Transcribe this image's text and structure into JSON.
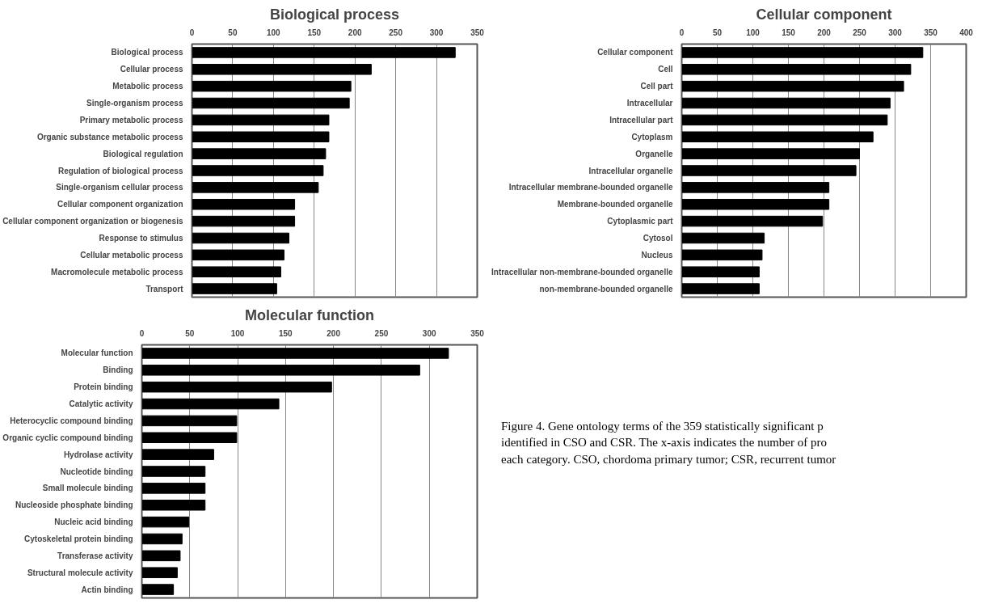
{
  "chart_data": [
    {
      "type": "bar",
      "orientation": "horizontal",
      "title": "Biological process",
      "grid": "x",
      "categories": [
        "Biological process",
        "Cellular process",
        "Metabolic process",
        "Single-organism process",
        "Primary metabolic process",
        "Organic substance metabolic process",
        "Biological regulation",
        "Regulation of biological process",
        "Single-organism cellular process",
        "Cellular component organization",
        "Cellular component organization or biogenesis",
        "Response to stimulus",
        "Cellular metabolic process",
        "Macromolecule metabolic process",
        "Transport"
      ],
      "series": [
        {
          "color": "#000000",
          "values": [
            323,
            220,
            195,
            193,
            168,
            168,
            164,
            161,
            155,
            126,
            126,
            119,
            113,
            109,
            104
          ]
        }
      ],
      "xlim": [
        0,
        350
      ],
      "xticks": [
        0,
        50,
        100,
        150,
        200,
        250,
        300,
        350
      ]
    },
    {
      "type": "bar",
      "orientation": "horizontal",
      "title": "Cellular component",
      "grid": "x",
      "categories": [
        "Cellular component",
        "Cell",
        "Cell part",
        "Intracellular",
        "Intracellular part",
        "Cytoplasm",
        "Organelle",
        "Intracellular organelle",
        "Intracellular membrane-bounded organelle",
        "Membrane-bounded organelle",
        "Cytoplasmic part",
        "Cytosol",
        "Nucleus",
        "Intracellular non-membrane-bounded organelle",
        "non-membrane-bounded organelle"
      ],
      "series": [
        {
          "color": "#000000",
          "values": [
            339,
            322,
            312,
            293,
            289,
            269,
            250,
            245,
            207,
            207,
            198,
            116,
            113,
            109,
            109
          ]
        }
      ],
      "xlim": [
        0,
        400
      ],
      "xticks": [
        0,
        50,
        100,
        150,
        200,
        250,
        300,
        350,
        400
      ]
    },
    {
      "type": "bar",
      "orientation": "horizontal",
      "title": "Molecular function",
      "grid": "x",
      "categories": [
        "Molecular function",
        "Binding",
        "Protein binding",
        "Catalytic activity",
        "Heterocyclic compound binding",
        "Organic cyclic compound binding",
        "Hydrolase activity",
        "Nucleotide binding",
        "Small molecule binding",
        "Nucleoside phosphate binding",
        "Nucleic acid binding",
        "Cytoskeletal protein binding",
        "Transferase activity",
        "Structural molecule activity",
        "Actin binding"
      ],
      "series": [
        {
          "color": "#000000",
          "values": [
            320,
            290,
            198,
            143,
            99,
            99,
            75,
            66,
            66,
            66,
            49,
            42,
            40,
            37,
            33
          ]
        }
      ],
      "xlim": [
        0,
        350
      ],
      "xticks": [
        0,
        50,
        100,
        150,
        200,
        250,
        300,
        350
      ]
    },
    {
      "type": "other",
      "annotations": [
        "Figure 4. Gene ontology terms of the 359 statistically significant p",
        "identified in CSO and CSR. The x-axis indicates the number of pro",
        "each category. CSO, chordoma primary tumor; CSR, recurrent tumor"
      ]
    }
  ]
}
